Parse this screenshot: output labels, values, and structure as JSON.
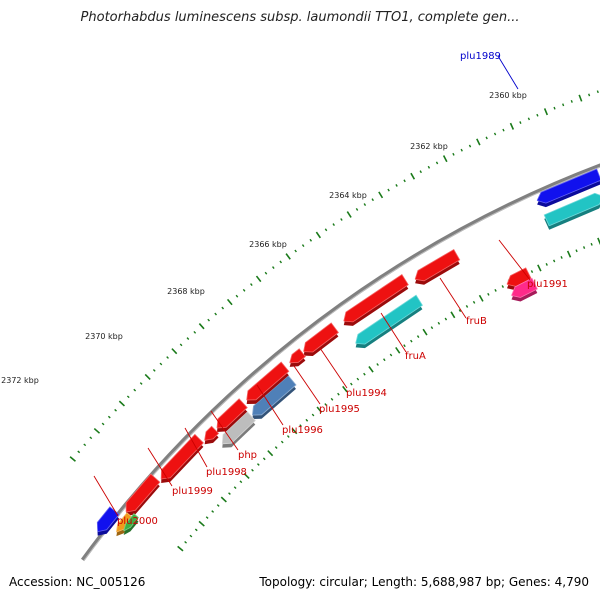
{
  "title": "Photorhabdus luminescens subsp. laumondii TTO1, complete gen...",
  "footer": {
    "accession": "Accession: NC_005126",
    "summary": "Topology: circular; Length: 5,688,987 bp; Genes: 4,790"
  },
  "scale": {
    "unit": "kbp",
    "ticks": [
      "2360 kbp",
      "2362 kbp",
      "2364 kbp",
      "2366 kbp",
      "2368 kbp",
      "2370 kbp",
      "2372 kbp"
    ]
  },
  "colors": {
    "red": "#ee1111",
    "cyan": "#22c4c4",
    "blue": "#1111ee",
    "pink": "#ff2a8a",
    "steelblue": "#4f80b8",
    "gray": "#bdbdbd",
    "green": "#3cb043",
    "orange": "#f29b1b",
    "backbone": "#808080",
    "tick": "#1a7a1a",
    "label_red": "#cc0000",
    "label_blue": "#0000cc"
  },
  "genes": [
    {
      "name": "plu1989",
      "color": "cyan",
      "strand": "+",
      "label": "plu1989",
      "label_color": "blue"
    },
    {
      "name": "plu1989-adj",
      "color": "blue",
      "strand": "-",
      "label": "",
      "label_color": "blue"
    },
    {
      "name": "plu1991",
      "color": "red",
      "strand": "-",
      "label": "plu1991",
      "label_color": "red"
    },
    {
      "name": "plu1991-pink",
      "color": "pink",
      "strand": "-",
      "label": "",
      "label_color": "red"
    },
    {
      "name": "fruB",
      "color": "red",
      "strand": "-",
      "label": "fruB",
      "label_color": "red"
    },
    {
      "name": "fruA",
      "color": "cyan",
      "strand": "-",
      "label": "fruA",
      "label_color": "red"
    },
    {
      "name": "plu1994",
      "color": "red",
      "strand": "-",
      "label": "plu1994",
      "label_color": "red"
    },
    {
      "name": "plu1995",
      "color": "red",
      "strand": "-",
      "label": "plu1995",
      "label_color": "red"
    },
    {
      "name": "plu1996",
      "color": "steelblue",
      "strand": "-",
      "label": "plu1996",
      "label_color": "red"
    },
    {
      "name": "php",
      "color": "gray",
      "strand": "-",
      "label": "php",
      "label_color": "red"
    },
    {
      "name": "plu1998",
      "color": "red",
      "strand": "-",
      "label": "plu1998",
      "label_color": "red"
    },
    {
      "name": "plu1999",
      "color": "red",
      "strand": "-",
      "label": "plu1999",
      "label_color": "red"
    },
    {
      "name": "plu2000",
      "color": "red",
      "strand": "-",
      "label": "plu2000",
      "label_color": "red"
    }
  ]
}
